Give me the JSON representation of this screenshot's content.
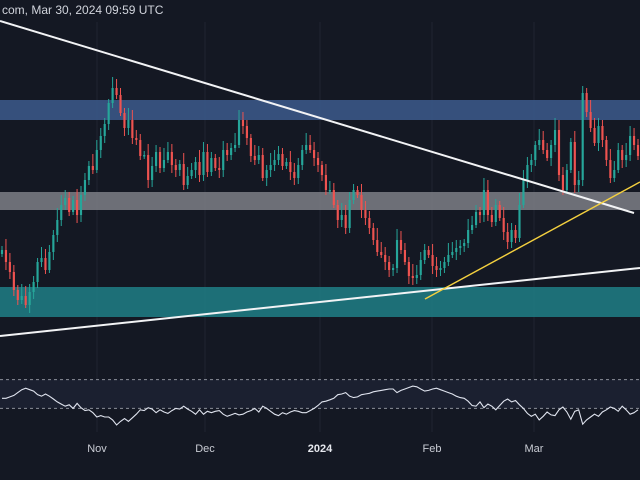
{
  "header": {
    "text": "com, Mar 30, 2024 09:59 UTC"
  },
  "colors": {
    "background": "#141823",
    "candle_up": "#26a69a",
    "candle_down": "#ef5350",
    "resistance_zone": "#3c5a8c",
    "mid_zone": "#7c7f86",
    "support_zone": "#1f7f86",
    "trendline": "#f2f3f5",
    "uptrend_line": "#f4d03f",
    "rsi_line": "#dfe3ee",
    "rsi_bands": "#8a8f99"
  },
  "chart_data": [
    {
      "type": "candlestick",
      "title": "",
      "x_ticks": [
        {
          "label": "Nov",
          "major": false
        },
        {
          "label": "Dec",
          "major": false
        },
        {
          "label": "2024",
          "major": true
        },
        {
          "label": "Feb",
          "major": false
        },
        {
          "label": "Mar",
          "major": false
        }
      ],
      "zones": [
        {
          "name": "resistance",
          "color": "#3c5a8c"
        },
        {
          "name": "middle",
          "color": "#7c7f86"
        },
        {
          "name": "support",
          "color": "#1f7f86"
        }
      ],
      "trendlines": [
        {
          "name": "descending-resistance",
          "color": "#f2f3f5"
        },
        {
          "name": "ascending-support",
          "color": "#f2f3f5"
        },
        {
          "name": "ascending-short",
          "color": "#f4d03f"
        }
      ],
      "closes": [
        250,
        262,
        272,
        290,
        300,
        296,
        305,
        292,
        282,
        262,
        258,
        270,
        252,
        235,
        220,
        205,
        198,
        212,
        200,
        215,
        195,
        180,
        166,
        170,
        150,
        136,
        124,
        103,
        88,
        95,
        113,
        128,
        120,
        138,
        140,
        156,
        155,
        180,
        166,
        152,
        168,
        160,
        152,
        165,
        170,
        164,
        185,
        176,
        170,
        162,
        175,
        152,
        172,
        158,
        168,
        170,
        150,
        155,
        148,
        145,
        120,
        126,
        138,
        156,
        160,
        155,
        178,
        170,
        165,
        160,
        154,
        166,
        162,
        172,
        178,
        165,
        150,
        145,
        150,
        158,
        165,
        175,
        190,
        190,
        205,
        220,
        215,
        228,
        200,
        190,
        195,
        210,
        218,
        228,
        240,
        252,
        255,
        262,
        270,
        268,
        240,
        250,
        262,
        276,
        278,
        275,
        260,
        250,
        255,
        266,
        270,
        268,
        262,
        255,
        252,
        248,
        246,
        243,
        230,
        225,
        212,
        215,
        190,
        215,
        222,
        205,
        218,
        232,
        242,
        230,
        238,
        205,
        180,
        165,
        160,
        145,
        140,
        150,
        158,
        145,
        130,
        175,
        190,
        170,
        142,
        185,
        180,
        93,
        112,
        128,
        143,
        126,
        140,
        160,
        178,
        170,
        150,
        160,
        155,
        136,
        145,
        156
      ]
    },
    {
      "type": "line",
      "title": "",
      "values": [
        44,
        44,
        46,
        48,
        52,
        56,
        58,
        56,
        54,
        49,
        47,
        50,
        47,
        43,
        39,
        36,
        33,
        35,
        30,
        37,
        31,
        27,
        28,
        24,
        18,
        20,
        18,
        18,
        14,
        7,
        12,
        16,
        12,
        17,
        22,
        28,
        27,
        31,
        29,
        24,
        28,
        25,
        23,
        27,
        30,
        29,
        33,
        29,
        26,
        22,
        28,
        22,
        26,
        24,
        26,
        27,
        22,
        19,
        21,
        23,
        21,
        22,
        25,
        27,
        30,
        25,
        33,
        30,
        26,
        22,
        20,
        24,
        22,
        25,
        27,
        26,
        24,
        24,
        27,
        30,
        34,
        39,
        40,
        42,
        44,
        49,
        50,
        52,
        47,
        45,
        46,
        49,
        50,
        51,
        53,
        54,
        55,
        56,
        57,
        57,
        52,
        55,
        57,
        59,
        61,
        60,
        57,
        54,
        55,
        57,
        58,
        56,
        54,
        52,
        50,
        47,
        45,
        44,
        40,
        34,
        33,
        39,
        31,
        36,
        33,
        28,
        34,
        40,
        43,
        39,
        41,
        35,
        30,
        23,
        19,
        22,
        14,
        19,
        25,
        21,
        20,
        28,
        32,
        25,
        15,
        26,
        28,
        8,
        14,
        18,
        22,
        19,
        25,
        28,
        32,
        30,
        26,
        33,
        28,
        22,
        24,
        28
      ],
      "bands": [
        30,
        70
      ],
      "ylim": [
        0,
        100
      ]
    }
  ]
}
